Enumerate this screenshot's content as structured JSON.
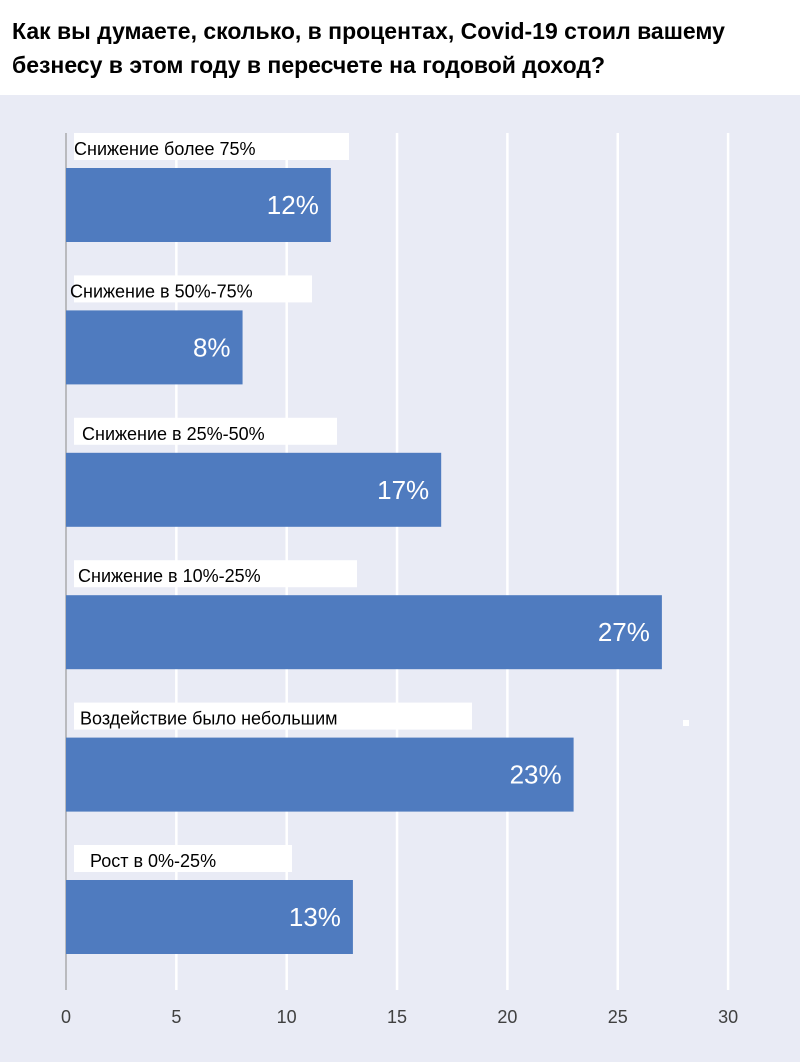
{
  "title": "Как вы думаете, сколько, в процентах, Covid-19 стоил вашему безнесу в этом году в пересчете на годовой доход?",
  "chart_data": {
    "type": "bar",
    "orientation": "horizontal",
    "title": "Как вы думаете, сколько, в процентах, Covid-19 стоил вашему безнесу в этом году в пересчете на годовой доход?",
    "categories": [
      "Снижение более 75%",
      "Снижение в 50%-75%",
      "Снижение в 25%-50%",
      "Снижение в 10%-25%",
      "Воздействие было небольшим",
      "Рост в 0%-25%"
    ],
    "values": [
      12,
      8,
      17,
      27,
      23,
      13
    ],
    "data_labels": [
      "12%",
      "8%",
      "17%",
      "27%",
      "23%",
      "13%"
    ],
    "x_ticks": [
      "0",
      "5",
      "10",
      "15",
      "20",
      "25",
      "30"
    ],
    "xlim": [
      0,
      30
    ],
    "grid": true,
    "bar_color": "#4f7bbf",
    "background_color": "#e9ebf5"
  }
}
